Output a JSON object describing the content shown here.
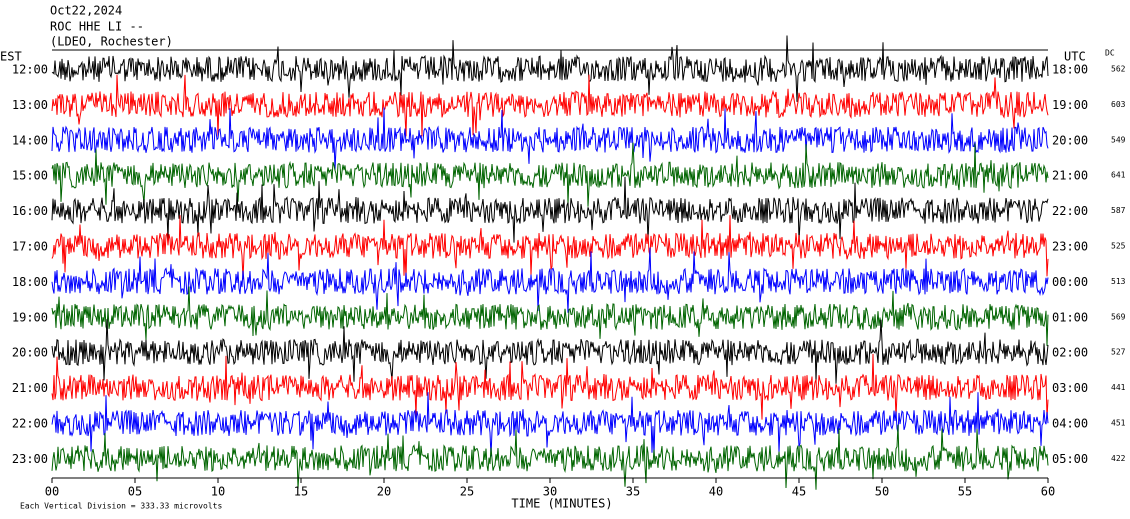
{
  "header": {
    "date": "Oct22,2024",
    "station": "ROC HHE LI --",
    "network": "(LDEO, Rochester)"
  },
  "left_axis": {
    "label": "EST",
    "ticks": [
      "12:00",
      "13:00",
      "14:00",
      "15:00",
      "16:00",
      "17:00",
      "18:00",
      "19:00",
      "20:00",
      "21:00",
      "22:00",
      "23:00"
    ]
  },
  "right_axis": {
    "label": "UTC",
    "ticks": [
      "18:00",
      "19:00",
      "20:00",
      "21:00",
      "22:00",
      "23:00",
      "00:00",
      "01:00",
      "02:00",
      "03:00",
      "04:00",
      "05:00"
    ]
  },
  "dc": {
    "label": "DC",
    "values": [
      562,
      603,
      549,
      641,
      587,
      525,
      513,
      569,
      527,
      441,
      451,
      422
    ]
  },
  "x_axis": {
    "label": "TIME (MINUTES)",
    "ticks": [
      "00",
      "05",
      "10",
      "15",
      "20",
      "25",
      "30",
      "35",
      "40",
      "45",
      "50",
      "55",
      "60"
    ]
  },
  "footer": "Each Vertical Division =  333.33 microvolts"
}
